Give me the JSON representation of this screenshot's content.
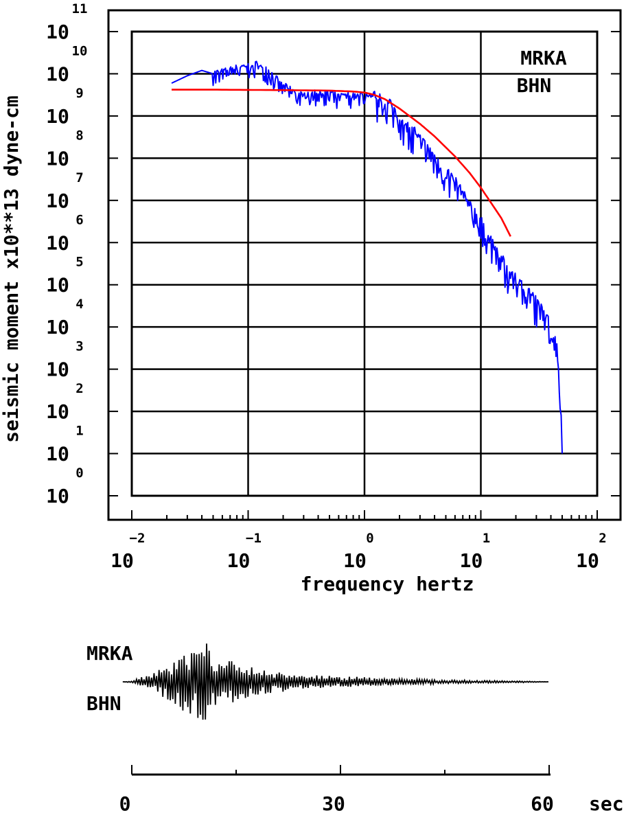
{
  "chart_data": [
    {
      "type": "line",
      "scale": {
        "x": "log",
        "y": "log"
      },
      "xlabel": "frequency  hertz",
      "ylabel": "seismic moment x10**13 dyne-cm",
      "x_ticks": [
        {
          "base": "10",
          "exp": "-2"
        },
        {
          "base": "10",
          "exp": "-1"
        },
        {
          "base": "10",
          "exp": "0"
        },
        {
          "base": "10",
          "exp": "1"
        },
        {
          "base": "10",
          "exp": "2"
        }
      ],
      "y_ticks": [
        {
          "base": "10",
          "exp": "0"
        },
        {
          "base": "10",
          "exp": "1"
        },
        {
          "base": "10",
          "exp": "2"
        },
        {
          "base": "10",
          "exp": "3"
        },
        {
          "base": "10",
          "exp": "4"
        },
        {
          "base": "10",
          "exp": "5"
        },
        {
          "base": "10",
          "exp": "6"
        },
        {
          "base": "10",
          "exp": "7"
        },
        {
          "base": "10",
          "exp": "8"
        },
        {
          "base": "10",
          "exp": "9"
        },
        {
          "base": "10",
          "exp": "10"
        },
        {
          "base": "10",
          "exp": "11"
        }
      ],
      "xlim": [
        0.01,
        100
      ],
      "ylim": [
        1,
        100000000000
      ],
      "grid": true,
      "legend_position": "top-right",
      "annotation": [
        "MRKA",
        "BHN"
      ],
      "series": [
        {
          "color": "#0000ff",
          "x": [
            0.022,
            0.03,
            0.04,
            0.05,
            0.065,
            0.08,
            0.1,
            0.12,
            0.14,
            0.16,
            0.2,
            0.25,
            0.3,
            0.35,
            0.4,
            0.5,
            0.6,
            0.7,
            0.8,
            1.0,
            1.2,
            1.5,
            1.8,
            2.2,
            2.7,
            3.3,
            4.0,
            5.0,
            6.0,
            7.0,
            8.0,
            10.0,
            12.0,
            15.0,
            18.0,
            22.0,
            27.0,
            33.0,
            40.0,
            45.0,
            48.0,
            50.0
          ],
          "y": [
            6000000000,
            9000000000,
            12000000000,
            10000000000,
            11000000000,
            13000000000,
            14000000000,
            16000000000,
            12000000000,
            9000000000,
            5000000000,
            3500000000,
            2800000000,
            3000000000,
            3500000000,
            3200000000,
            2700000000,
            3000000000,
            2800000000,
            3000000000,
            2600000000,
            2000000000,
            1300000000,
            600000000,
            350000000,
            180000000,
            90000000,
            45000000,
            25000000,
            12000000,
            6500000,
            2800000,
            1100000,
            350000,
            180000,
            90000,
            50000,
            25000,
            9000,
            3000,
            400,
            10
          ]
        },
        {
          "color": "#ff0000",
          "x": [
            0.022,
            0.03,
            0.05,
            0.1,
            0.2,
            0.5,
            0.8,
            1.0,
            1.2,
            1.5,
            2.0,
            3.0,
            4.0,
            6.0,
            8.0,
            10.0,
            12.0,
            15.0,
            18.0
          ],
          "y": [
            4200000000,
            4200000000,
            4200000000,
            4150000000,
            4100000000,
            4000000000,
            3800000000,
            3600000000,
            3200000000,
            2500000000,
            1500000000,
            650000000,
            330000000,
            110000000,
            45000000,
            20000000,
            9500000,
            3800000,
            1400000
          ]
        }
      ]
    },
    {
      "type": "line",
      "xlabel": "sec",
      "x_ticks": [
        "0",
        "30",
        "60"
      ],
      "xlim": [
        -1.3,
        60
      ],
      "ylim": [
        -1,
        1
      ],
      "grid": false,
      "annotation": [
        "MRKA",
        "BHN"
      ],
      "series": [
        {
          "color": "#000000",
          "x": [
            -1.3,
            0,
            1,
            2,
            3,
            4,
            5,
            6,
            7,
            8,
            9,
            10,
            11,
            12,
            13,
            14,
            15,
            16,
            17,
            18,
            19,
            20,
            22,
            24,
            26,
            28,
            30,
            32,
            34,
            36,
            38,
            40,
            42,
            44,
            46,
            48,
            50,
            52,
            54,
            56,
            58,
            60
          ],
          "y": [
            0,
            0.02,
            -0.1,
            0.15,
            -0.2,
            0.35,
            -0.4,
            0.5,
            -0.6,
            0.78,
            -0.72,
            1.0,
            -0.85,
            0.6,
            -0.55,
            0.5,
            -0.45,
            0.4,
            -0.35,
            0.32,
            -0.3,
            0.28,
            -0.22,
            0.18,
            -0.16,
            0.15,
            -0.12,
            0.12,
            -0.1,
            0.09,
            -0.08,
            0.07,
            -0.06,
            0.05,
            -0.04,
            0.04,
            -0.03,
            0.03,
            -0.02,
            0.02,
            -0.01,
            0
          ]
        }
      ]
    }
  ]
}
